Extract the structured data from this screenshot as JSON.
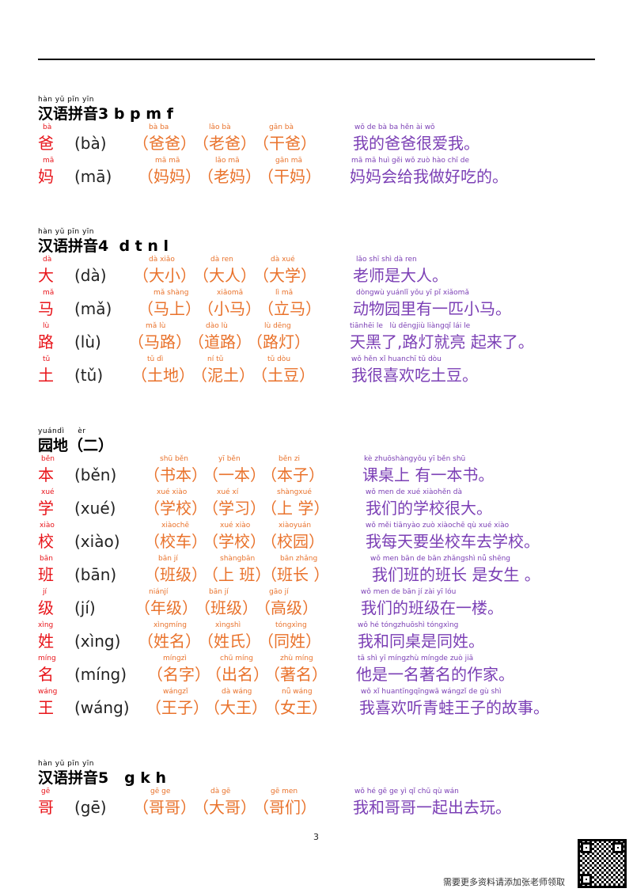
{
  "sections": [
    {
      "pinyin": "hàn yǔ pīn yīn",
      "title": "汉语拼音3 b p m f",
      "rows": [
        {
          "char_py": "bà",
          "char": "爸",
          "reading": "(bà)",
          "words": [
            {
              "py": "bà ba",
              "text": "（爸爸）"
            },
            {
              "py": "lǎo bà",
              "text": "（老爸）"
            },
            {
              "py": "gān bà",
              "text": "（干爸）"
            }
          ],
          "sentence_py": "wǒ de bà ba hěn ài wǒ",
          "sentence": "我的爸爸很爱我。"
        },
        {
          "char_py": "mā",
          "char": "妈",
          "reading": "(mā)",
          "words": [
            {
              "py": "mā mā",
              "text": "（妈妈）"
            },
            {
              "py": "lǎo mā",
              "text": "（老妈）"
            },
            {
              "py": "gān mā",
              "text": "（干妈）"
            }
          ],
          "sentence_py": "mā mā huì gěi wǒ zuò hào chī de",
          "sentence": "妈妈会给我做好吃的。"
        }
      ]
    },
    {
      "pinyin": "hàn yǔ pīn yīn",
      "title": "汉语拼音4  d t n l",
      "rows": [
        {
          "char_py": "dà",
          "char": "大",
          "reading": "(dà)",
          "words": [
            {
              "py": "dà xiǎo",
              "text": "（大小）"
            },
            {
              "py": "dà ren",
              "text": "（大人）"
            },
            {
              "py": "dà xué",
              "text": "（大学）"
            }
          ],
          "sentence_py": "lǎo shī shì dà ren",
          "sentence": "老师是大人。"
        },
        {
          "char_py": "mǎ",
          "char": "马",
          "reading": "(mǎ)",
          "words": [
            {
              "py": "mǎ shàng",
              "text": "（马上）"
            },
            {
              "py": "xiǎomǎ",
              "text": "（小马）"
            },
            {
              "py": "lì mǎ",
              "text": "（立马）"
            }
          ],
          "sentence_py": "dòngwù yuánlǐ yǒu yī pǐ xiǎomǎ",
          "sentence": "动物园里有一匹小马。"
        },
        {
          "char_py": "lù",
          "char": "路",
          "reading": "(lù)",
          "words": [
            {
              "py": "mǎ lù",
              "text": "（马路）"
            },
            {
              "py": "dào lù",
              "text": "（道路）"
            },
            {
              "py": "lù dēng",
              "text": "（路灯）"
            }
          ],
          "sentence_py": "tiānhēi le   lù dēngjiù liàngqǐ lái le",
          "sentence": "天黑了,路灯就亮 起来了。"
        },
        {
          "char_py": "tǔ",
          "char": "土",
          "reading": "(tǔ)",
          "words": [
            {
              "py": "tǔ dì",
              "text": "（土地）"
            },
            {
              "py": "ní tǔ",
              "text": "（泥土）"
            },
            {
              "py": "tǔ dòu",
              "text": "（土豆）"
            }
          ],
          "sentence_py": "wǒ hěn xǐ huanchī tǔ dòu",
          "sentence": "我很喜欢吃土豆。"
        }
      ]
    },
    {
      "pinyin": "yuándì     èr",
      "title": "园地（二）",
      "rows": [
        {
          "char_py": "běn",
          "char": "本",
          "reading": "(běn)",
          "words": [
            {
              "py": "shū běn",
              "text": "（书本）"
            },
            {
              "py": "yī běn",
              "text": "（一本）"
            },
            {
              "py": "běn zi",
              "text": "（本子）"
            }
          ],
          "sentence_py": "kè zhuōshàngyǒu yī běn shū",
          "sentence": "课桌上 有一本书。"
        },
        {
          "char_py": "xué",
          "char": "学",
          "reading": "(xué)",
          "words": [
            {
              "py": "xué xiào",
              "text": "（学校）"
            },
            {
              "py": "xué xí",
              "text": "（学习）"
            },
            {
              "py": "shàngxué",
              "text": "（上 学）"
            }
          ],
          "sentence_py": "wǒ men de xué xiàohěn dà",
          "sentence": "我们的学校很大。"
        },
        {
          "char_py": "xiào",
          "char": "校",
          "reading": "(xiào)",
          "words": [
            {
              "py": "xiàochē",
              "text": "（校车）"
            },
            {
              "py": "xué xiào",
              "text": "（学校）"
            },
            {
              "py": "xiàoyuán",
              "text": "（校园）"
            }
          ],
          "sentence_py": "wǒ měi tiānyào zuò xiàochē qù xué xiào",
          "sentence": "我每天要坐校车去学校。"
        },
        {
          "char_py": "bān",
          "char": "班",
          "reading": "(bān)",
          "words": [
            {
              "py": "bān jí",
              "text": "（班级）"
            },
            {
              "py": "shàngbān",
              "text": "（上 班）"
            },
            {
              "py": "bān zhǎng",
              "text": "（班长 ）"
            }
          ],
          "sentence_py": "wǒ men bān de bān zhǎngshì nǚ shēng",
          "sentence": "我们班的班长 是女生 。"
        },
        {
          "char_py": "jí",
          "char": "级",
          "reading": "(jí)",
          "words": [
            {
              "py": "niánjí",
              "text": "（年级）"
            },
            {
              "py": "bān jí",
              "text": "（班级）"
            },
            {
              "py": "gāo jí",
              "text": "（高级）"
            }
          ],
          "sentence_py": "wǒ men de bān jí zài yī lóu",
          "sentence": "我们的班级在一楼。"
        },
        {
          "char_py": "xìng",
          "char": "姓",
          "reading": "(xìng)",
          "words": [
            {
              "py": "xìngmíng",
              "text": "（姓名）"
            },
            {
              "py": "xìngshì",
              "text": "（姓氏）"
            },
            {
              "py": "tóngxìng",
              "text": "（同姓）"
            }
          ],
          "sentence_py": "wǒ hé tóngzhuōshì tóngxìng",
          "sentence": "我和同桌是同姓。"
        },
        {
          "char_py": "míng",
          "char": "名",
          "reading": "(míng)",
          "words": [
            {
              "py": "míngzì",
              "text": "（名字）"
            },
            {
              "py": "chū míng",
              "text": "（出名）"
            },
            {
              "py": "zhù míng",
              "text": "（著名）"
            }
          ],
          "sentence_py": "tā shì yī míngzhù míngde zuò jiā",
          "sentence": "他是一名著名的作家。"
        },
        {
          "char_py": "wáng",
          "char": "王",
          "reading": "(wáng)",
          "words": [
            {
              "py": "wángzǐ",
              "text": "（王子）"
            },
            {
              "py": "dà wáng",
              "text": "（大王）"
            },
            {
              "py": "nǚ wáng",
              "text": "（女王）"
            }
          ],
          "sentence_py": "wǒ xǐ huantīngqīngwā wángzǐ de gù shì",
          "sentence": "我喜欢听青蛙王子的故事。"
        }
      ]
    },
    {
      "pinyin": "hàn yǔ pīn yīn",
      "title": "汉语拼音5   g k h",
      "rows": [
        {
          "char_py": "gē",
          "char": "哥",
          "reading": "(gē)",
          "words": [
            {
              "py": "gē ge",
              "text": "（哥哥）"
            },
            {
              "py": "dà gē",
              "text": "（大哥）"
            },
            {
              "py": "gē men",
              "text": "（哥们）"
            }
          ],
          "sentence_py": "wǒ hé gē ge yì qǐ chū qù wán",
          "sentence": "我和哥哥一起出去玩。"
        }
      ]
    }
  ],
  "page_number": "3",
  "footer_note": "需要更多资料请添加张老师领取",
  "colors": {
    "char": "#e8141a",
    "words": "#e9722b",
    "sentence": "#7b3fb5"
  }
}
